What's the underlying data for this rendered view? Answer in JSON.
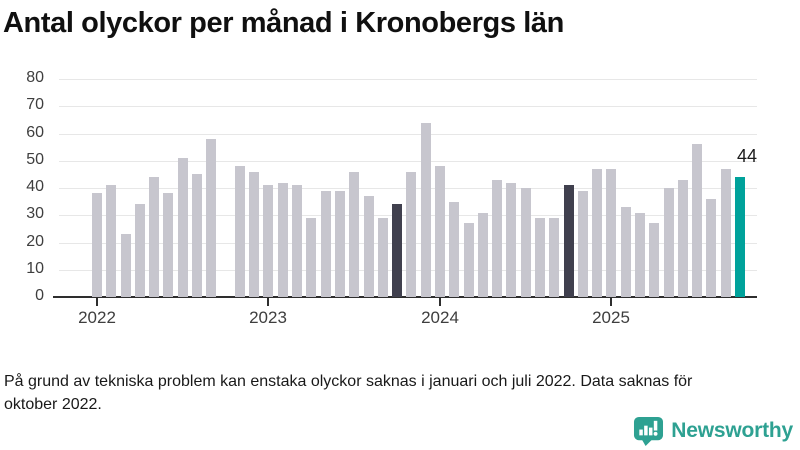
{
  "footnote": {
    "lines": [
      "På grund av tekniska problem kan enstaka olyckor saknas i januari och juli 2022. Data saknas för",
      "oktober 2022."
    ]
  },
  "logo": {
    "wordmark": "Newsworthy",
    "icon": "newsworthy-speech-bubble-chart-icon",
    "color": "#2ea192"
  },
  "chart_data": {
    "type": "bar",
    "title": "Antal olyckor per månad i Kronobergs län",
    "x": [
      "2022-01",
      "2022-02",
      "2022-03",
      "2022-04",
      "2022-05",
      "2022-06",
      "2022-07",
      "2022-08",
      "2022-09",
      "2022-10",
      "2022-11",
      "2022-12",
      "2023-01",
      "2023-02",
      "2023-03",
      "2023-04",
      "2023-05",
      "2023-06",
      "2023-07",
      "2023-08",
      "2023-09",
      "2023-10",
      "2023-11",
      "2023-12",
      "2024-01",
      "2024-02",
      "2024-03",
      "2024-04",
      "2024-05",
      "2024-06",
      "2024-07",
      "2024-08",
      "2024-09",
      "2024-10",
      "2024-11",
      "2024-12",
      "2025-01",
      "2025-02",
      "2025-03",
      "2025-04",
      "2025-05",
      "2025-06",
      "2025-07",
      "2025-08",
      "2025-09",
      "2025-10"
    ],
    "values": [
      38,
      41,
      23,
      34,
      44,
      38,
      51,
      45,
      58,
      null,
      48,
      46,
      41,
      42,
      41,
      29,
      39,
      39,
      46,
      37,
      29,
      34,
      46,
      64,
      48,
      35,
      27,
      31,
      43,
      42,
      40,
      29,
      29,
      41,
      39,
      47,
      47,
      33,
      31,
      27,
      40,
      43,
      56,
      36,
      47,
      44
    ],
    "missing_months": [
      "2022-10"
    ],
    "highlighted_months": [
      "2023-10",
      "2024-10"
    ],
    "accent_month": "2025-10",
    "annotation": {
      "month": "2025-10",
      "label": "44"
    },
    "ylim": [
      0,
      80
    ],
    "yticks": [
      0,
      10,
      20,
      30,
      40,
      50,
      60,
      70,
      80
    ],
    "xtick_labels": [
      "2022",
      "2023",
      "2024",
      "2025"
    ],
    "grid": true,
    "legend": false,
    "bar_colors": {
      "default": "#c7c6ce",
      "highlight": "#40404e",
      "accent": "#00a29b"
    }
  }
}
